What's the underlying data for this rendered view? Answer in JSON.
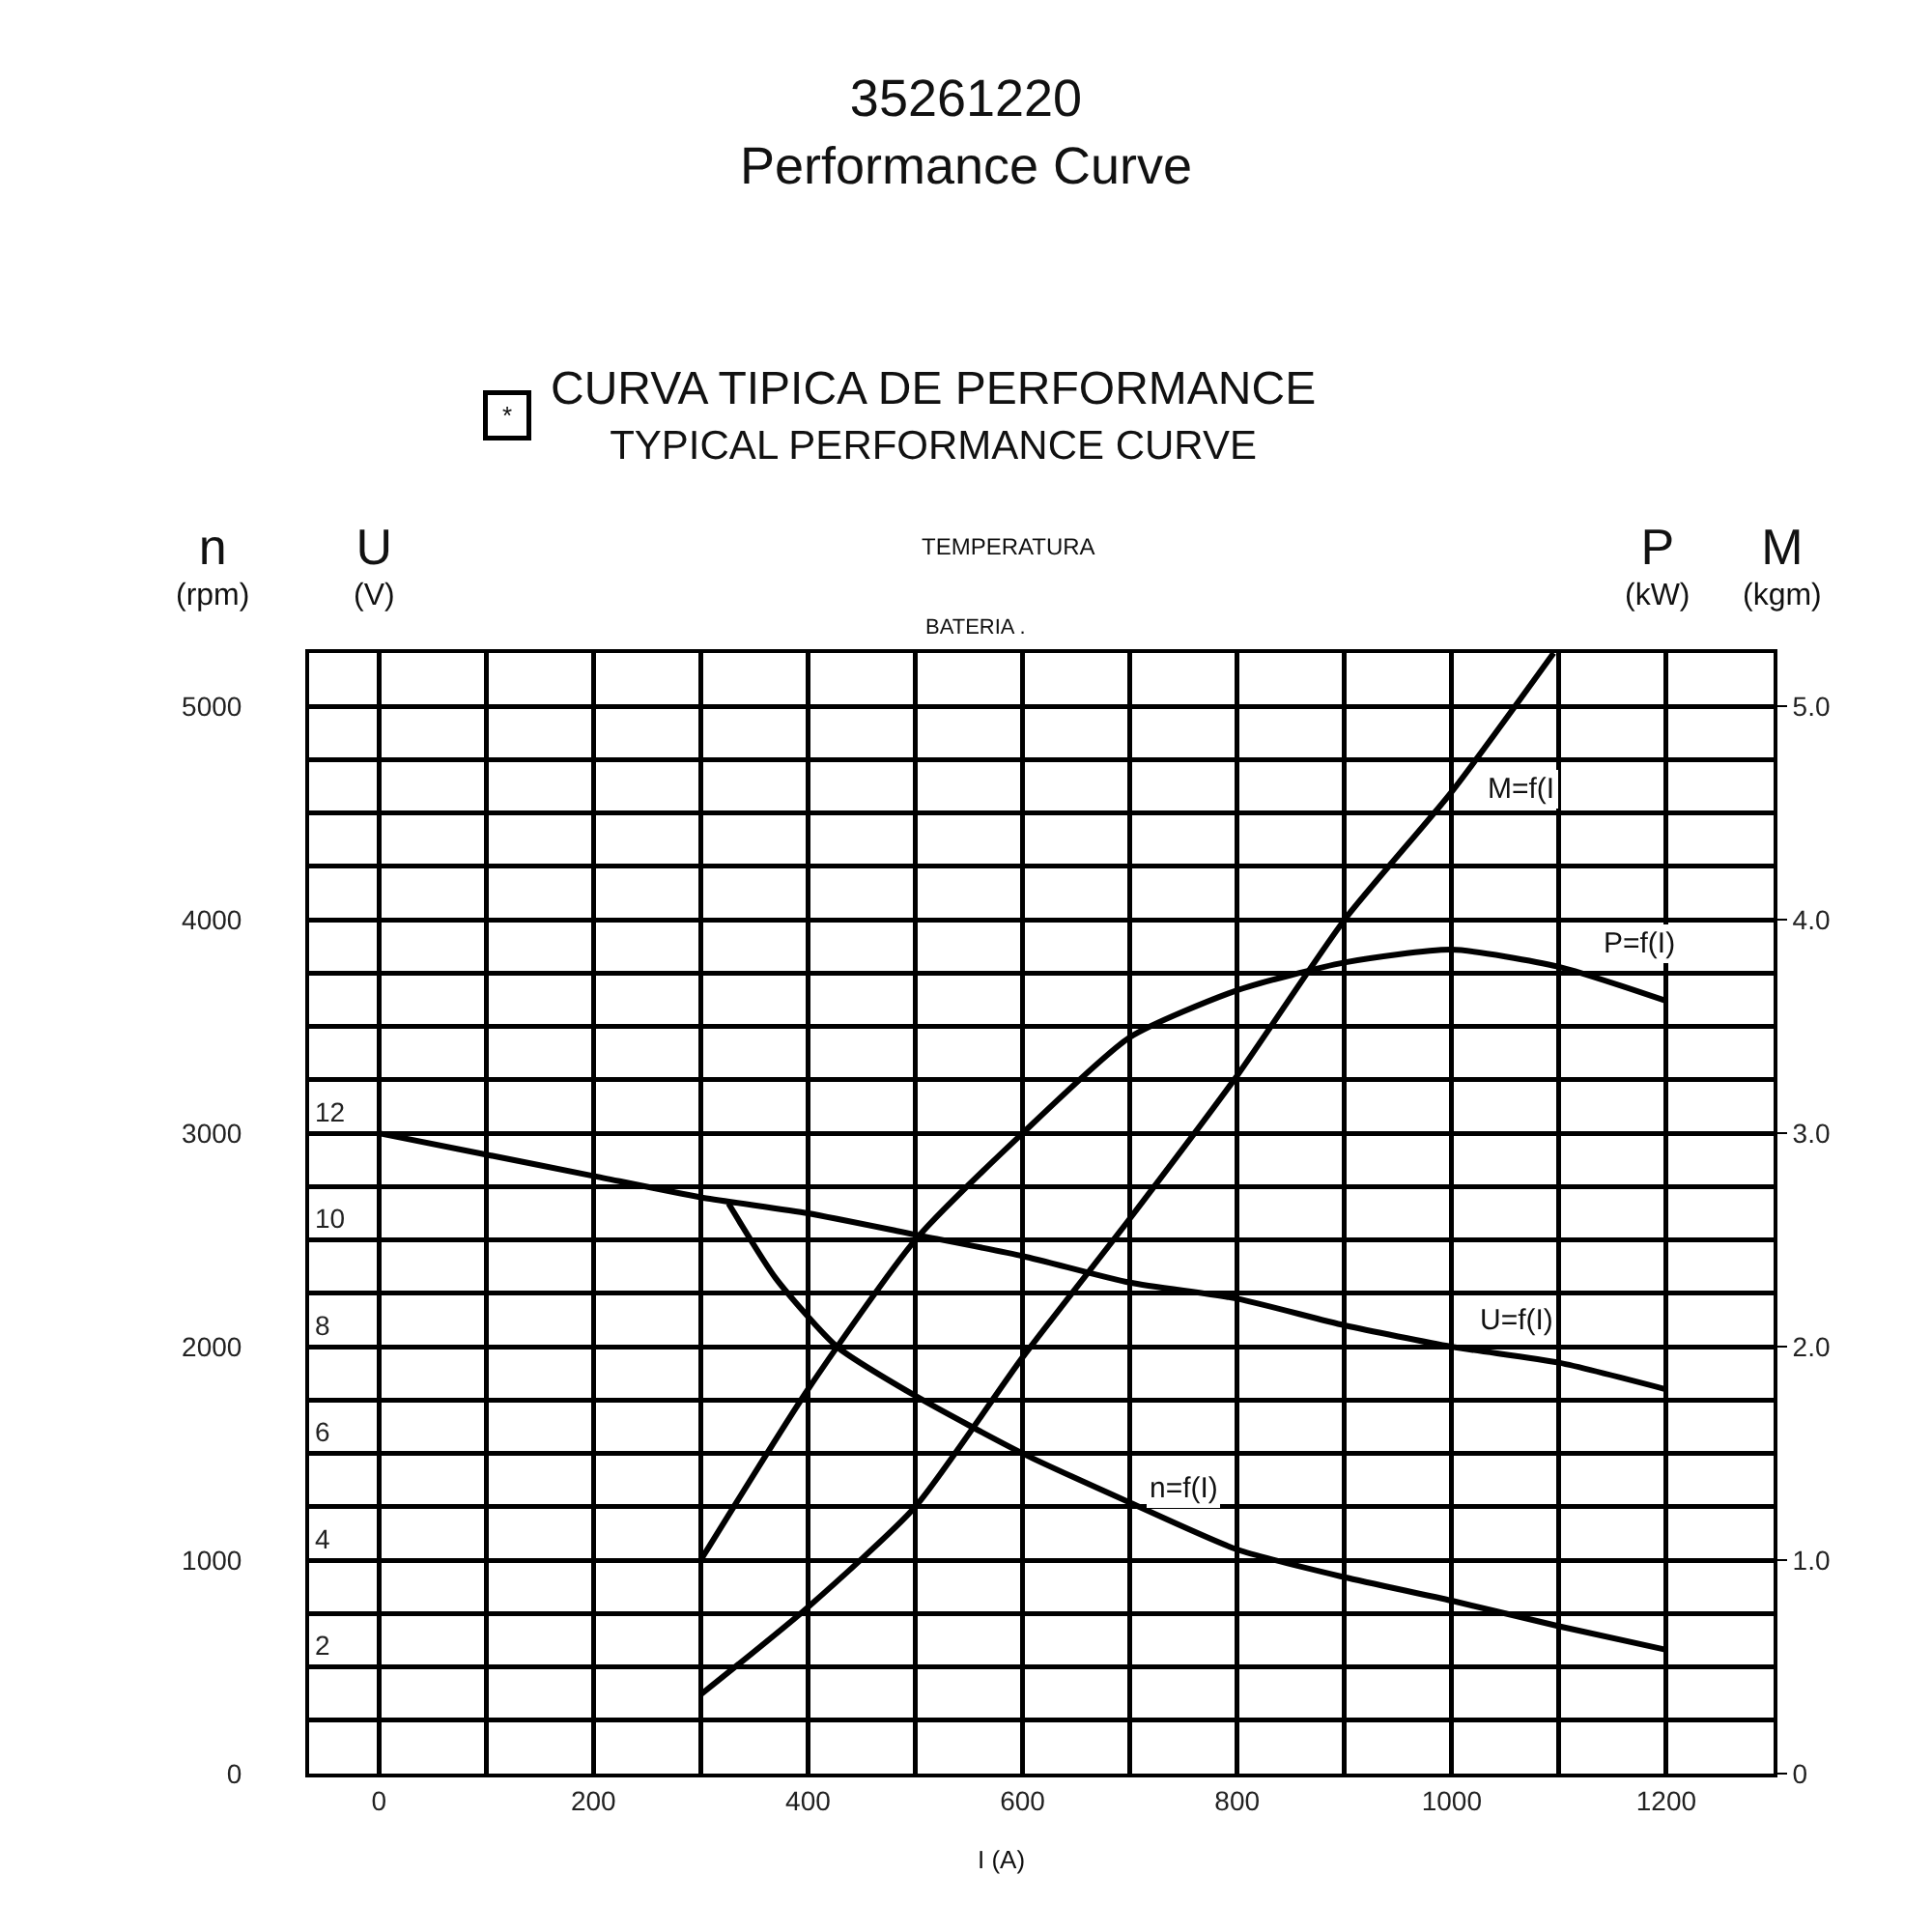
{
  "chart_data": {
    "type": "line",
    "title": "35261220\nPerformance Curve",
    "subtitle": "CURVA TIPICA DE PERFORMANCE\nTYPICAL PERFORMANCE CURVE",
    "xlabel": "I (A)",
    "ylabel": "n\n(rpm)",
    "y2label": "U\n(V)",
    "y3label": "P\n(kW)",
    "annotations": [
      "M\n(kgm)",
      "*",
      "TEMPERATURA",
      "BATERIA ."
    ],
    "xlim": [
      -65,
      1300
    ],
    "xticks": [
      0,
      200,
      400,
      600,
      800,
      1000,
      1200
    ],
    "ylim": [
      0,
      5250
    ],
    "yticks": [
      0,
      1000,
      2000,
      3000,
      4000,
      5000
    ],
    "y2lim": [
      0,
      21
    ],
    "y2ticks": [
      2,
      4,
      6,
      8,
      10,
      12
    ],
    "y3lim": [
      0,
      5.25
    ],
    "y3ticks": [
      0,
      {
        "value": 1,
        "label": "1.0"
      },
      {
        "value": 2,
        "label": "2.0"
      },
      {
        "value": 3,
        "label": "3.0"
      },
      {
        "value": 4,
        "label": "4.0"
      },
      {
        "value": 5,
        "label": "5.0"
      }
    ],
    "grid": true,
    "legend": false,
    "marker": "none",
    "line_style": "solid",
    "series": [
      {
        "name": "n=f(I)",
        "color": "#000000",
        "x": [
          326,
          370,
          427,
          500,
          600,
          700,
          800,
          900,
          1000,
          1100,
          1200
        ],
        "values": [
          2670,
          2320,
          2000,
          1770,
          1500,
          1270,
          1050,
          920,
          810,
          690,
          580
        ]
      },
      {
        "name": "U=f(I)",
        "color": "#000000",
        "axis": "y2",
        "x": [
          0,
          100,
          200,
          300,
          400,
          500,
          600,
          700,
          800,
          900,
          1000,
          1100,
          1200
        ],
        "values": [
          12.0,
          11.6,
          11.2,
          10.8,
          10.5,
          10.1,
          9.7,
          9.2,
          8.9,
          8.4,
          8.0,
          7.7,
          7.2
        ]
      },
      {
        "name": "P=f(I)",
        "color": "#000000",
        "axis": "y3",
        "x": [
          300,
          400,
          500,
          600,
          700,
          800,
          900,
          1000,
          1100,
          1200
        ],
        "values": [
          1.0,
          1.8,
          2.5,
          3.0,
          3.45,
          3.67,
          3.8,
          3.86,
          3.78,
          3.62
        ]
      },
      {
        "name": "M=f(I",
        "color": "#000000",
        "axis": "y3",
        "x": [
          300,
          400,
          500,
          600,
          700,
          800,
          900,
          1000,
          1095
        ],
        "values": [
          0.37,
          0.78,
          1.25,
          1.95,
          2.6,
          3.27,
          4.0,
          4.6,
          5.25
        ]
      }
    ]
  }
}
